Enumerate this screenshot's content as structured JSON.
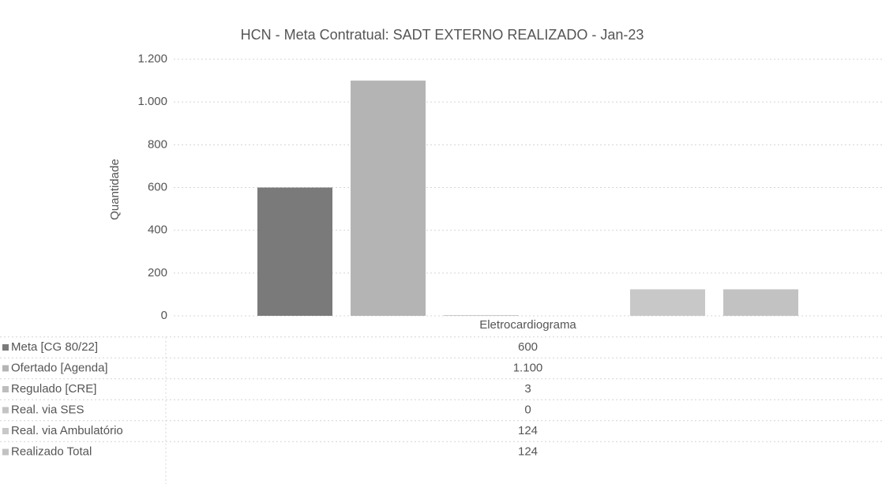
{
  "chart_data": {
    "type": "bar",
    "title": "HCN - Meta Contratual: SADT EXTERNO REALIZADO - Jan-23",
    "y_label": "Quantidade",
    "categories": [
      "Eletrocardiograma"
    ],
    "series": [
      {
        "name": "Meta [CG 80/22]",
        "color": "#7a7a7a",
        "values": [
          600
        ]
      },
      {
        "name": "Ofertado [Agenda]",
        "color": "#b4b4b4",
        "values": [
          1100
        ],
        "value_labels": [
          "1.100"
        ]
      },
      {
        "name": "Regulado [CRE]",
        "color": "#bdbdbd",
        "values": [
          3
        ]
      },
      {
        "name": "Real. via SES",
        "color": "#c4c4c4",
        "values": [
          0
        ]
      },
      {
        "name": "Real. via Ambulatório",
        "color": "#c8c8c8",
        "values": [
          124
        ]
      },
      {
        "name": "Realizado Total",
        "color": "#c2c2c2",
        "values": [
          124
        ]
      }
    ],
    "ylim": [
      0,
      1200
    ],
    "yticks": [
      0,
      200,
      400,
      600,
      800,
      {
        "value": 1000,
        "label": "1.000"
      },
      {
        "value": 1200,
        "label": "1.200"
      }
    ],
    "grid": true
  }
}
